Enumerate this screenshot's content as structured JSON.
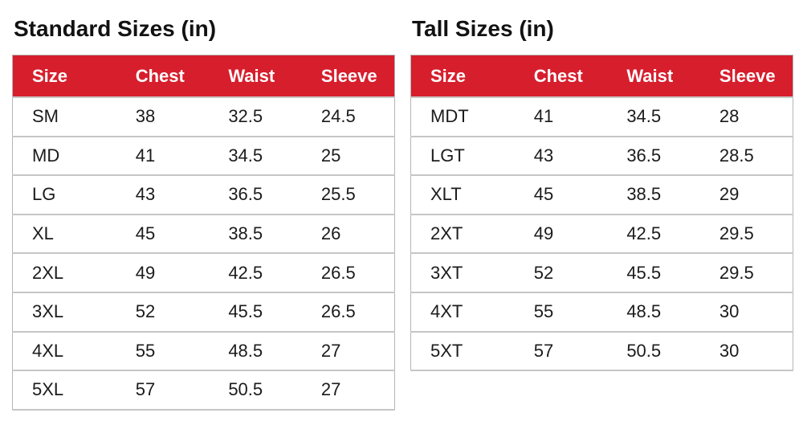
{
  "colors": {
    "header_bg": "#d71e2d",
    "header_text": "#ffffff",
    "body_text": "#1b1b1b",
    "border_outer": "#b5b5b5",
    "border_row": "#c6c6c6",
    "title_text": "#121212"
  },
  "chart_data": [
    {
      "type": "table",
      "title": "Standard Sizes (in)",
      "columns": [
        "Size",
        "Chest",
        "Waist",
        "Sleeve"
      ],
      "rows": [
        [
          "SM",
          "38",
          "32.5",
          "24.5"
        ],
        [
          "MD",
          "41",
          "34.5",
          "25"
        ],
        [
          "LG",
          "43",
          "36.5",
          "25.5"
        ],
        [
          "XL",
          "45",
          "38.5",
          "26"
        ],
        [
          "2XL",
          "49",
          "42.5",
          "26.5"
        ],
        [
          "3XL",
          "52",
          "45.5",
          "26.5"
        ],
        [
          "4XL",
          "55",
          "48.5",
          "27"
        ],
        [
          "5XL",
          "57",
          "50.5",
          "27"
        ]
      ]
    },
    {
      "type": "table",
      "title": "Tall Sizes (in)",
      "columns": [
        "Size",
        "Chest",
        "Waist",
        "Sleeve"
      ],
      "rows": [
        [
          "MDT",
          "41",
          "34.5",
          "28"
        ],
        [
          "LGT",
          "43",
          "36.5",
          "28.5"
        ],
        [
          "XLT",
          "45",
          "38.5",
          "29"
        ],
        [
          "2XT",
          "49",
          "42.5",
          "29.5"
        ],
        [
          "3XT",
          "52",
          "45.5",
          "29.5"
        ],
        [
          "4XT",
          "55",
          "48.5",
          "30"
        ],
        [
          "5XT",
          "57",
          "50.5",
          "30"
        ]
      ]
    }
  ]
}
